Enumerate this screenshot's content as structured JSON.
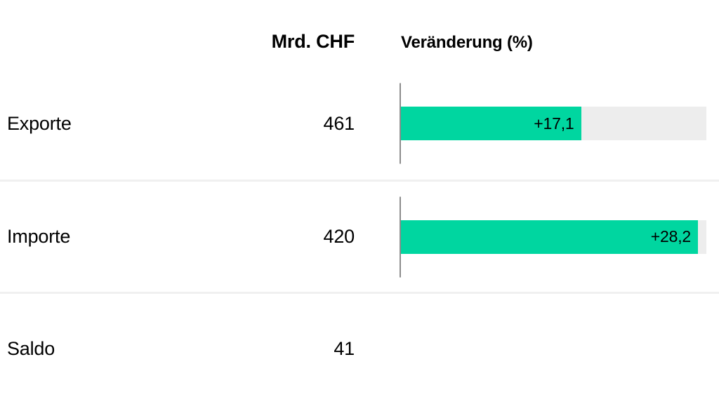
{
  "header": {
    "value_col": "Mrd. CHF",
    "change_col": "Veränderung (%)"
  },
  "rows": [
    {
      "label": "Exporte",
      "value": "461",
      "change": 17.1,
      "change_label": "+17,1",
      "has_bar": true
    },
    {
      "label": "Importe",
      "value": "420",
      "change": 28.2,
      "change_label": "+28,2",
      "has_bar": true
    },
    {
      "label": "Saldo",
      "value": "41",
      "change": null,
      "change_label": "",
      "has_bar": false
    }
  ],
  "chart_data": {
    "type": "bar",
    "orientation": "horizontal",
    "title": "",
    "xlabel": "Veränderung (%)",
    "ylabel": "",
    "categories": [
      "Exporte",
      "Importe",
      "Saldo"
    ],
    "series": [
      {
        "name": "Mrd. CHF",
        "values": [
          461,
          420,
          41
        ]
      },
      {
        "name": "Veränderung (%)",
        "values": [
          17.1,
          28.2,
          null
        ]
      }
    ],
    "bar_value_labels": [
      "+17,1",
      "+28,2",
      null
    ],
    "xlim": [
      0,
      29
    ],
    "grid": false,
    "legend": false
  },
  "colors": {
    "bar_green": "#00d6a0",
    "bar_track": "#ededed",
    "separator": "#f0f0f0",
    "axis_line": "#8c8c8c",
    "text": "#000000",
    "background": "#ffffff"
  }
}
